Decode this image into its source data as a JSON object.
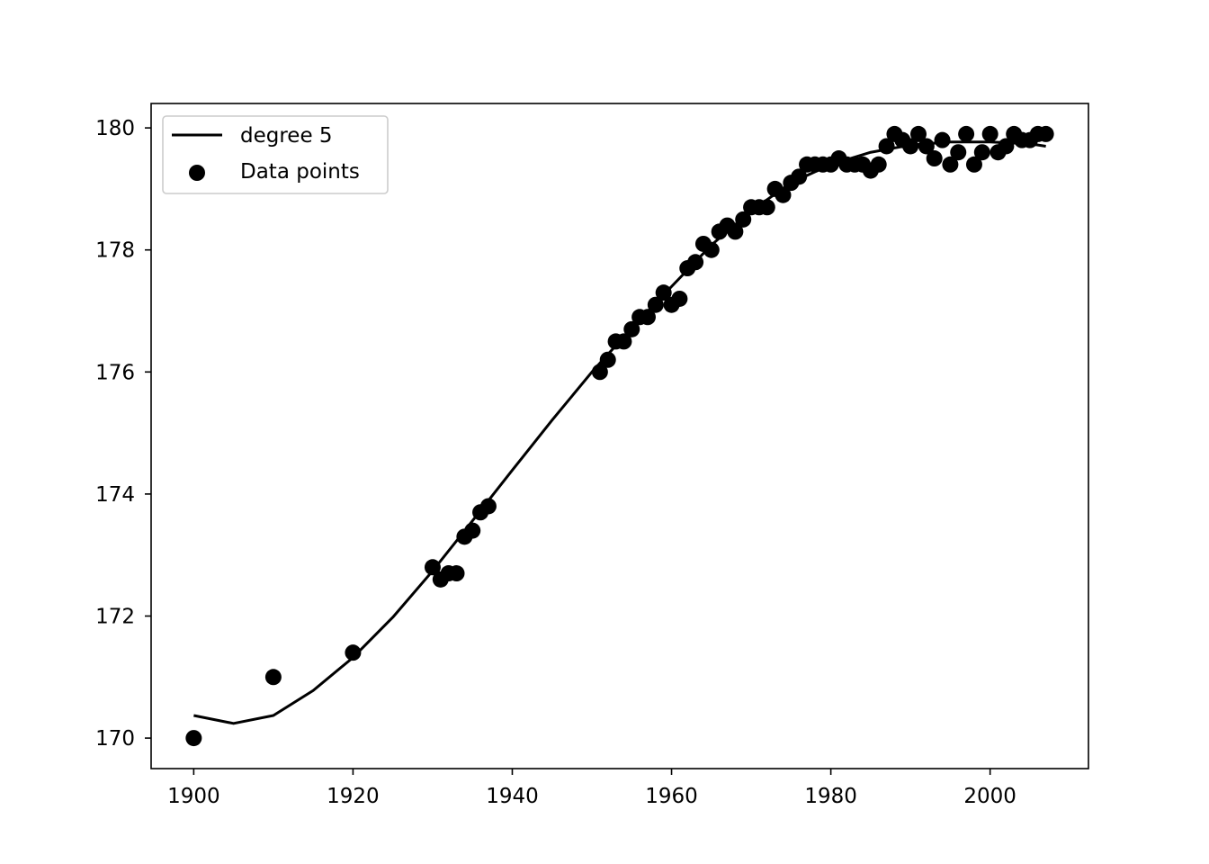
{
  "chart_data": {
    "type": "scatter",
    "title": "",
    "xlabel": "",
    "ylabel": "",
    "xlim": [
      1894.65,
      2012.35
    ],
    "ylim": [
      169.5,
      180.4
    ],
    "x_ticks": [
      1900,
      1920,
      1940,
      1960,
      1980,
      2000
    ],
    "y_ticks": [
      170,
      172,
      174,
      176,
      178,
      180
    ],
    "grid": false,
    "legend": {
      "position": "top-left"
    },
    "colors": {
      "line": "#000000",
      "points": "#000000"
    },
    "series": [
      {
        "name": "degree 5",
        "kind": "line",
        "x": [
          1900,
          1905,
          1910,
          1915,
          1920,
          1925,
          1930,
          1935,
          1940,
          1945,
          1950,
          1955,
          1960,
          1965,
          1970,
          1975,
          1980,
          1985,
          1990,
          1995,
          2000,
          2005,
          2007
        ],
        "y": [
          170.37,
          170.24,
          170.37,
          170.78,
          171.32,
          171.98,
          172.74,
          173.56,
          174.39,
          175.21,
          176.0,
          176.72,
          177.4,
          178.08,
          178.64,
          179.1,
          179.4,
          179.6,
          179.72,
          179.77,
          179.77,
          179.74,
          179.7
        ]
      },
      {
        "name": "Data points",
        "kind": "scatter",
        "x": [
          1900,
          1910,
          1920,
          1930,
          1931,
          1932,
          1933,
          1934,
          1935,
          1936,
          1937,
          1951,
          1952,
          1953,
          1954,
          1955,
          1956,
          1957,
          1958,
          1959,
          1960,
          1961,
          1962,
          1963,
          1964,
          1965,
          1966,
          1967,
          1968,
          1969,
          1970,
          1971,
          1972,
          1973,
          1974,
          1975,
          1976,
          1977,
          1978,
          1979,
          1980,
          1981,
          1982,
          1983,
          1984,
          1985,
          1986,
          1987,
          1988,
          1989,
          1990,
          1991,
          1992,
          1993,
          1994,
          1995,
          1996,
          1997,
          1998,
          1999,
          2000,
          2001,
          2002,
          2003,
          2004,
          2005,
          2006,
          2007
        ],
        "y": [
          170.0,
          171.0,
          171.4,
          172.8,
          172.6,
          172.7,
          172.7,
          173.3,
          173.4,
          173.7,
          173.8,
          176.0,
          176.2,
          176.5,
          176.5,
          176.7,
          176.9,
          176.9,
          177.1,
          177.3,
          177.1,
          177.2,
          177.7,
          177.8,
          178.1,
          178.0,
          178.3,
          178.4,
          178.3,
          178.5,
          178.7,
          178.7,
          178.7,
          179.0,
          178.9,
          179.1,
          179.2,
          179.4,
          179.4,
          179.4,
          179.4,
          179.5,
          179.4,
          179.4,
          179.4,
          179.3,
          179.4,
          179.7,
          179.9,
          179.8,
          179.7,
          179.9,
          179.7,
          179.5,
          179.8,
          179.4,
          179.6,
          179.9,
          179.4,
          179.6,
          179.9,
          179.6,
          179.7,
          179.9,
          179.8,
          179.8,
          179.9,
          179.9
        ]
      }
    ]
  }
}
